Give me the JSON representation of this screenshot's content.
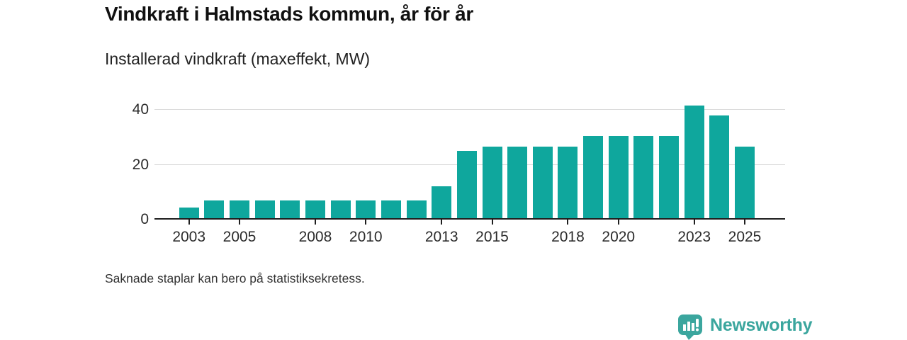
{
  "header": {
    "title": "Vindkraft i Halmstads kommun, år för år",
    "subtitle": "Installerad vindkraft (maxeffekt, MW)"
  },
  "footer": {
    "note": "Saknade staplar kan bero på statistiksekretess.",
    "brand": "Newsworthy"
  },
  "colors": {
    "bar": "#0fa79d",
    "axis": "#1f1f1f",
    "grid": "#d9d9d9",
    "text": "#2b2b2b",
    "brand": "#3ba69e"
  },
  "icons": {
    "logo": "bar-chart-badge-icon"
  },
  "chart_data": {
    "type": "bar",
    "title": "Vindkraft i Halmstads kommun, år för år",
    "subtitle": "Installerad vindkraft (maxeffekt, MW)",
    "xlabel": "",
    "ylabel": "Installerad vindkraft (maxeffekt, MW)",
    "x": [
      2003,
      2004,
      2005,
      2006,
      2007,
      2008,
      2009,
      2010,
      2011,
      2012,
      2013,
      2014,
      2015,
      2016,
      2017,
      2018,
      2019,
      2020,
      2021,
      2022,
      2023,
      2024,
      2025
    ],
    "values": [
      4.2,
      6.8,
      6.8,
      6.8,
      6.8,
      6.8,
      6.8,
      6.8,
      6.8,
      6.8,
      11.9,
      24.7,
      26.4,
      26.4,
      26.4,
      26.4,
      30.2,
      30.2,
      30.2,
      30.2,
      41.3,
      37.8,
      26.4
    ],
    "ylim": [
      0,
      44
    ],
    "yticks": [
      0,
      20,
      40
    ],
    "xticks": [
      2003,
      2005,
      2008,
      2010,
      2013,
      2015,
      2018,
      2020,
      2023,
      2025
    ],
    "grid": "horizontal",
    "legend": "none",
    "bar_color": "#0fa79d"
  }
}
